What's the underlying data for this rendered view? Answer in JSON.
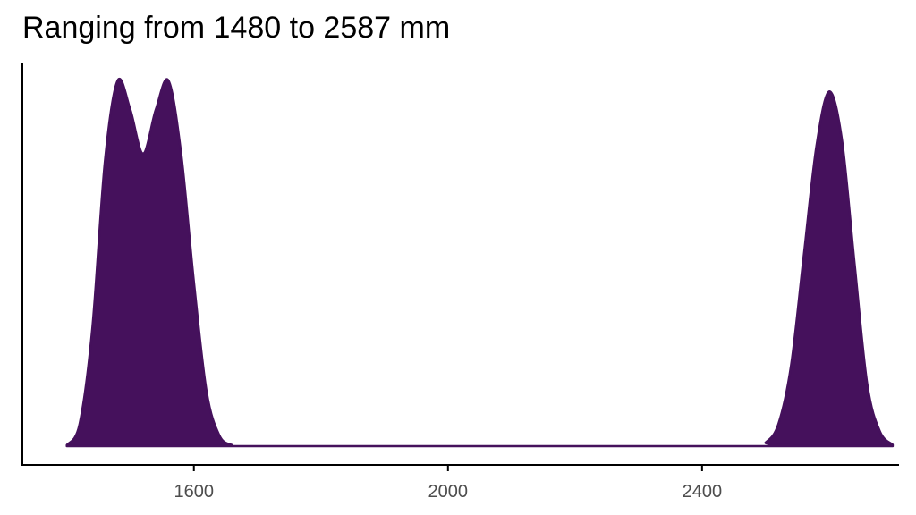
{
  "chart_data": {
    "type": "area",
    "title": "Ranging from 1480 to 2587 mm",
    "xlabel": "",
    "ylabel": "",
    "xlim": [
      1330,
      2710
    ],
    "ylim": [
      0,
      1.1
    ],
    "x_ticks": [
      1600,
      2000,
      2400
    ],
    "x_tick_labels": [
      "1600",
      "2000",
      "2400"
    ],
    "y_ticks": [],
    "grid": false,
    "legend": "none",
    "series": [
      {
        "x": [
          1400,
          1420,
          1440,
          1460,
          1480,
          1500,
          1520,
          1540,
          1560,
          1580,
          1600,
          1620,
          1640,
          1660,
          1680,
          2480,
          2500,
          2520,
          2540,
          2560,
          2580,
          2600,
          2620,
          2640,
          2660,
          2680,
          2700
        ],
        "y": [
          0.003,
          0.06,
          0.32,
          0.78,
          1.0,
          0.92,
          0.8,
          0.92,
          1.0,
          0.8,
          0.45,
          0.15,
          0.03,
          0.003,
          0.0,
          0.0,
          0.01,
          0.06,
          0.22,
          0.52,
          0.82,
          0.97,
          0.84,
          0.5,
          0.17,
          0.04,
          0.004
        ]
      }
    ]
  },
  "colors": {
    "fill": "#45115c",
    "axis": "#000000",
    "tick_text": "#4d4d4d"
  }
}
